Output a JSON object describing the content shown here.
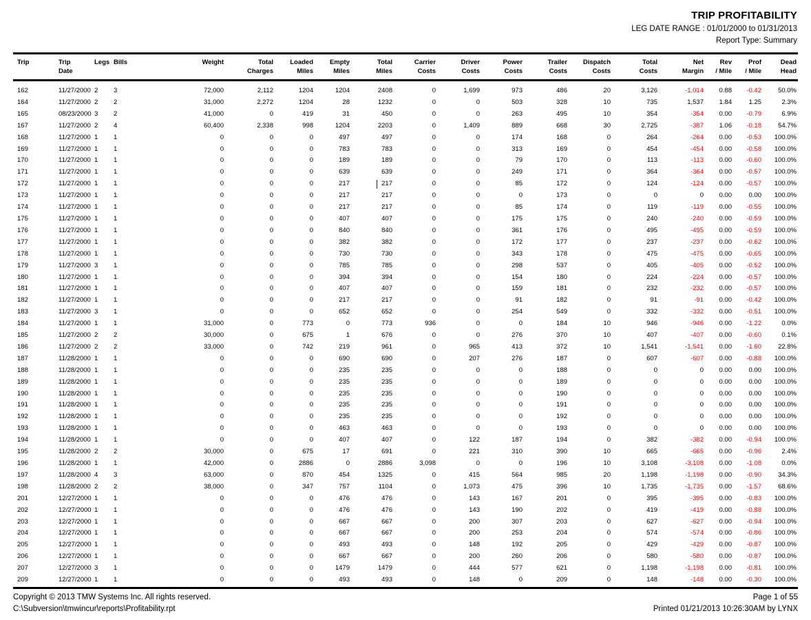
{
  "header": {
    "title": "TRIP PROFITABILITY",
    "date_range": "LEG DATE RANGE : 01/01/2000 to 01/31/2013",
    "report_type": "Report Type: Summary"
  },
  "colors": {
    "negative": "#ff0000",
    "text": "#000000",
    "rule": "#000000"
  },
  "table": {
    "columns": [
      {
        "l1": "Trip",
        "l2": ""
      },
      {
        "l1": "Trip",
        "l2": "Date"
      },
      {
        "l1": "Legs",
        "l2": ""
      },
      {
        "l1": "Bills",
        "l2": ""
      },
      {
        "l1": "Weight",
        "l2": ""
      },
      {
        "l1": "Total",
        "l2": "Charges"
      },
      {
        "l1": "Loaded",
        "l2": "Miles"
      },
      {
        "l1": "Empty",
        "l2": "Miles"
      },
      {
        "l1": "Total",
        "l2": "Miles"
      },
      {
        "l1": "Carrier",
        "l2": "Costs"
      },
      {
        "l1": "Driver",
        "l2": "Costs"
      },
      {
        "l1": "Power",
        "l2": "Costs"
      },
      {
        "l1": "Trailer",
        "l2": "Costs"
      },
      {
        "l1": "Dispatch",
        "l2": "Costs"
      },
      {
        "l1": "Total",
        "l2": "Costs"
      },
      {
        "l1": "Net",
        "l2": "Margin"
      },
      {
        "l1": "Rev",
        "l2": "/ Mile"
      },
      {
        "l1": "Prof",
        "l2": "/ Mile"
      },
      {
        "l1": "Dead",
        "l2": "Head"
      }
    ],
    "rows": [
      [
        "162",
        "11/27/2000",
        "2",
        "3",
        "72,000",
        "2,112",
        "1204",
        "1204",
        "2408",
        "0",
        "1,699",
        "973",
        "486",
        "20",
        "3,126",
        "-1,014",
        "0.88",
        "-0.42",
        "50.0%"
      ],
      [
        "164",
        "11/27/2000",
        "2",
        "2",
        "31,000",
        "2,272",
        "1204",
        "28",
        "1232",
        "0",
        "0",
        "503",
        "328",
        "10",
        "735",
        "1,537",
        "1.84",
        "1.25",
        "2.3%"
      ],
      [
        "165",
        "08/23/2000",
        "3",
        "2",
        "41,000",
        "0",
        "419",
        "31",
        "450",
        "0",
        "0",
        "263",
        "495",
        "10",
        "354",
        "-354",
        "0.00",
        "-0.79",
        "6.9%"
      ],
      [
        "167",
        "11/27/2000",
        "2",
        "4",
        "60,400",
        "2,338",
        "998",
        "1204",
        "2203",
        "0",
        "1,409",
        "889",
        "668",
        "30",
        "2,725",
        "-387",
        "1.06",
        "-0.18",
        "54.7%"
      ],
      [
        "168",
        "11/27/2000",
        "1",
        "1",
        "0",
        "0",
        "0",
        "497",
        "497",
        "0",
        "0",
        "174",
        "168",
        "0",
        "264",
        "-264",
        "0.00",
        "-0.53",
        "100.0%"
      ],
      [
        "169",
        "11/27/2000",
        "1",
        "1",
        "0",
        "0",
        "0",
        "783",
        "783",
        "0",
        "0",
        "313",
        "169",
        "0",
        "454",
        "-454",
        "0.00",
        "-0.58",
        "100.0%"
      ],
      [
        "170",
        "11/27/2000",
        "1",
        "1",
        "0",
        "0",
        "0",
        "189",
        "189",
        "0",
        "0",
        "79",
        "170",
        "0",
        "113",
        "-113",
        "0.00",
        "-0.60",
        "100.0%"
      ],
      [
        "171",
        "11/27/2000",
        "1",
        "1",
        "0",
        "0",
        "0",
        "639",
        "639",
        "0",
        "0",
        "249",
        "171",
        "0",
        "364",
        "-364",
        "0.00",
        "-0.57",
        "100.0%"
      ],
      [
        "172",
        "11/27/2000",
        "1",
        "1",
        "0",
        "0",
        "0",
        "217",
        "217",
        "0",
        "0",
        "85",
        "172",
        "0",
        "124",
        "-124",
        "0.00",
        "-0.57",
        "100.0%"
      ],
      [
        "173",
        "11/27/2000",
        "1",
        "1",
        "0",
        "0",
        "0",
        "217",
        "217",
        "0",
        "0",
        "0",
        "173",
        "0",
        "0",
        "0",
        "0.00",
        "0.00",
        "100.0%"
      ],
      [
        "174",
        "11/27/2000",
        "1",
        "1",
        "0",
        "0",
        "0",
        "217",
        "217",
        "0",
        "0",
        "85",
        "174",
        "0",
        "119",
        "-119",
        "0.00",
        "-0.55",
        "100.0%"
      ],
      [
        "175",
        "11/27/2000",
        "1",
        "1",
        "0",
        "0",
        "0",
        "407",
        "407",
        "0",
        "0",
        "175",
        "175",
        "0",
        "240",
        "-240",
        "0.00",
        "-0.59",
        "100.0%"
      ],
      [
        "176",
        "11/27/2000",
        "1",
        "1",
        "0",
        "0",
        "0",
        "840",
        "840",
        "0",
        "0",
        "361",
        "176",
        "0",
        "495",
        "-495",
        "0.00",
        "-0.59",
        "100.0%"
      ],
      [
        "177",
        "11/27/2000",
        "1",
        "1",
        "0",
        "0",
        "0",
        "382",
        "382",
        "0",
        "0",
        "172",
        "177",
        "0",
        "237",
        "-237",
        "0.00",
        "-0.62",
        "100.0%"
      ],
      [
        "178",
        "11/27/2000",
        "1",
        "1",
        "0",
        "0",
        "0",
        "730",
        "730",
        "0",
        "0",
        "343",
        "178",
        "0",
        "475",
        "-475",
        "0.00",
        "-0.65",
        "100.0%"
      ],
      [
        "179",
        "11/27/2000",
        "3",
        "1",
        "0",
        "0",
        "0",
        "785",
        "785",
        "0",
        "0",
        "298",
        "537",
        "0",
        "405",
        "-405",
        "0.00",
        "-0.52",
        "100.0%"
      ],
      [
        "180",
        "11/27/2000",
        "1",
        "1",
        "0",
        "0",
        "0",
        "394",
        "394",
        "0",
        "0",
        "154",
        "180",
        "0",
        "224",
        "-224",
        "0.00",
        "-0.57",
        "100.0%"
      ],
      [
        "181",
        "11/27/2000",
        "1",
        "1",
        "0",
        "0",
        "0",
        "407",
        "407",
        "0",
        "0",
        "159",
        "181",
        "0",
        "232",
        "-232",
        "0.00",
        "-0.57",
        "100.0%"
      ],
      [
        "182",
        "11/27/2000",
        "1",
        "1",
        "0",
        "0",
        "0",
        "217",
        "217",
        "0",
        "0",
        "91",
        "182",
        "0",
        "91",
        "-91",
        "0.00",
        "-0.42",
        "100.0%"
      ],
      [
        "183",
        "11/27/2000",
        "3",
        "1",
        "0",
        "0",
        "0",
        "652",
        "652",
        "0",
        "0",
        "254",
        "549",
        "0",
        "332",
        "-332",
        "0.00",
        "-0.51",
        "100.0%"
      ],
      [
        "184",
        "11/27/2000",
        "1",
        "1",
        "31,000",
        "0",
        "773",
        "0",
        "773",
        "936",
        "0",
        "0",
        "184",
        "10",
        "946",
        "-946",
        "0.00",
        "-1.22",
        "0.0%"
      ],
      [
        "185",
        "11/27/2000",
        "2",
        "2",
        "30,000",
        "0",
        "675",
        "1",
        "676",
        "0",
        "0",
        "276",
        "370",
        "10",
        "407",
        "-407",
        "0.00",
        "-0.60",
        "0.1%"
      ],
      [
        "186",
        "11/27/2000",
        "2",
        "2",
        "33,000",
        "0",
        "742",
        "219",
        "961",
        "0",
        "965",
        "413",
        "372",
        "10",
        "1,541",
        "-1,541",
        "0.00",
        "-1.60",
        "22.8%"
      ],
      [
        "187",
        "11/28/2000",
        "1",
        "1",
        "0",
        "0",
        "0",
        "690",
        "690",
        "0",
        "207",
        "276",
        "187",
        "0",
        "607",
        "-607",
        "0.00",
        "-0.88",
        "100.0%"
      ],
      [
        "188",
        "11/28/2000",
        "1",
        "1",
        "0",
        "0",
        "0",
        "235",
        "235",
        "0",
        "0",
        "0",
        "188",
        "0",
        "0",
        "0",
        "0.00",
        "0.00",
        "100.0%"
      ],
      [
        "189",
        "11/28/2000",
        "1",
        "1",
        "0",
        "0",
        "0",
        "235",
        "235",
        "0",
        "0",
        "0",
        "189",
        "0",
        "0",
        "0",
        "0.00",
        "0.00",
        "100.0%"
      ],
      [
        "190",
        "11/28/2000",
        "1",
        "1",
        "0",
        "0",
        "0",
        "235",
        "235",
        "0",
        "0",
        "0",
        "190",
        "0",
        "0",
        "0",
        "0.00",
        "0.00",
        "100.0%"
      ],
      [
        "191",
        "11/28/2000",
        "1",
        "1",
        "0",
        "0",
        "0",
        "235",
        "235",
        "0",
        "0",
        "0",
        "191",
        "0",
        "0",
        "0",
        "0.00",
        "0.00",
        "100.0%"
      ],
      [
        "192",
        "11/28/2000",
        "1",
        "1",
        "0",
        "0",
        "0",
        "235",
        "235",
        "0",
        "0",
        "0",
        "192",
        "0",
        "0",
        "0",
        "0.00",
        "0.00",
        "100.0%"
      ],
      [
        "193",
        "11/28/2000",
        "1",
        "1",
        "0",
        "0",
        "0",
        "463",
        "463",
        "0",
        "0",
        "0",
        "193",
        "0",
        "0",
        "0",
        "0.00",
        "0.00",
        "100.0%"
      ],
      [
        "194",
        "11/28/2000",
        "1",
        "1",
        "0",
        "0",
        "0",
        "407",
        "407",
        "0",
        "122",
        "187",
        "194",
        "0",
        "382",
        "-382",
        "0.00",
        "-0.94",
        "100.0%"
      ],
      [
        "195",
        "11/28/2000",
        "2",
        "2",
        "30,000",
        "0",
        "675",
        "17",
        "691",
        "0",
        "221",
        "310",
        "390",
        "10",
        "665",
        "-665",
        "0.00",
        "-0.96",
        "2.4%"
      ],
      [
        "196",
        "11/28/2000",
        "1",
        "1",
        "42,000",
        "0",
        "2886",
        "0",
        "2886",
        "3,098",
        "0",
        "0",
        "196",
        "10",
        "3,108",
        "-3,108",
        "0.00",
        "-1.08",
        "0.0%"
      ],
      [
        "197",
        "11/28/2000",
        "4",
        "3",
        "63,000",
        "0",
        "870",
        "454",
        "1325",
        "0",
        "415",
        "564",
        "985",
        "20",
        "1,198",
        "-1,198",
        "0.00",
        "-0.90",
        "34.3%"
      ],
      [
        "198",
        "11/28/2000",
        "2",
        "2",
        "38,000",
        "0",
        "347",
        "757",
        "1104",
        "0",
        "1,073",
        "475",
        "396",
        "10",
        "1,735",
        "-1,735",
        "0.00",
        "-1.57",
        "68.6%"
      ],
      [
        "201",
        "12/27/2000",
        "1",
        "1",
        "0",
        "0",
        "0",
        "476",
        "476",
        "0",
        "143",
        "167",
        "201",
        "0",
        "395",
        "-395",
        "0.00",
        "-0.83",
        "100.0%"
      ],
      [
        "202",
        "12/27/2000",
        "1",
        "1",
        "0",
        "0",
        "0",
        "476",
        "476",
        "0",
        "143",
        "190",
        "202",
        "0",
        "419",
        "-419",
        "0.00",
        "-0.88",
        "100.0%"
      ],
      [
        "203",
        "12/27/2000",
        "1",
        "1",
        "0",
        "0",
        "0",
        "667",
        "667",
        "0",
        "200",
        "307",
        "203",
        "0",
        "627",
        "-627",
        "0.00",
        "-0.94",
        "100.0%"
      ],
      [
        "204",
        "12/27/2000",
        "1",
        "1",
        "0",
        "0",
        "0",
        "667",
        "667",
        "0",
        "200",
        "253",
        "204",
        "0",
        "574",
        "-574",
        "0.00",
        "-0.86",
        "100.0%"
      ],
      [
        "205",
        "12/27/2000",
        "1",
        "1",
        "0",
        "0",
        "0",
        "493",
        "493",
        "0",
        "148",
        "192",
        "205",
        "0",
        "429",
        "-429",
        "0.00",
        "-0.87",
        "100.0%"
      ],
      [
        "206",
        "12/27/2000",
        "1",
        "1",
        "0",
        "0",
        "0",
        "667",
        "667",
        "0",
        "200",
        "260",
        "206",
        "0",
        "580",
        "-580",
        "0.00",
        "-0.87",
        "100.0%"
      ],
      [
        "207",
        "12/27/2000",
        "3",
        "1",
        "0",
        "0",
        "0",
        "1479",
        "1479",
        "0",
        "444",
        "577",
        "621",
        "0",
        "1,198",
        "-1,198",
        "0.00",
        "-0.81",
        "100.0%"
      ],
      [
        "209",
        "12/27/2000",
        "1",
        "1",
        "0",
        "0",
        "0",
        "493",
        "493",
        "0",
        "148",
        "0",
        "209",
        "0",
        "148",
        "-148",
        "0.00",
        "-0.30",
        "100.0%"
      ]
    ]
  },
  "footer": {
    "copyright": "Copyright © 2013 TMW Systems Inc. All rights reserved.",
    "file_path": "C:\\Subversion\\tmwincur\\reports\\Profitability.rpt",
    "page": "Page 1 of 55",
    "printed": "Printed 01/21/2013 10:26:30AM by LYNX"
  }
}
